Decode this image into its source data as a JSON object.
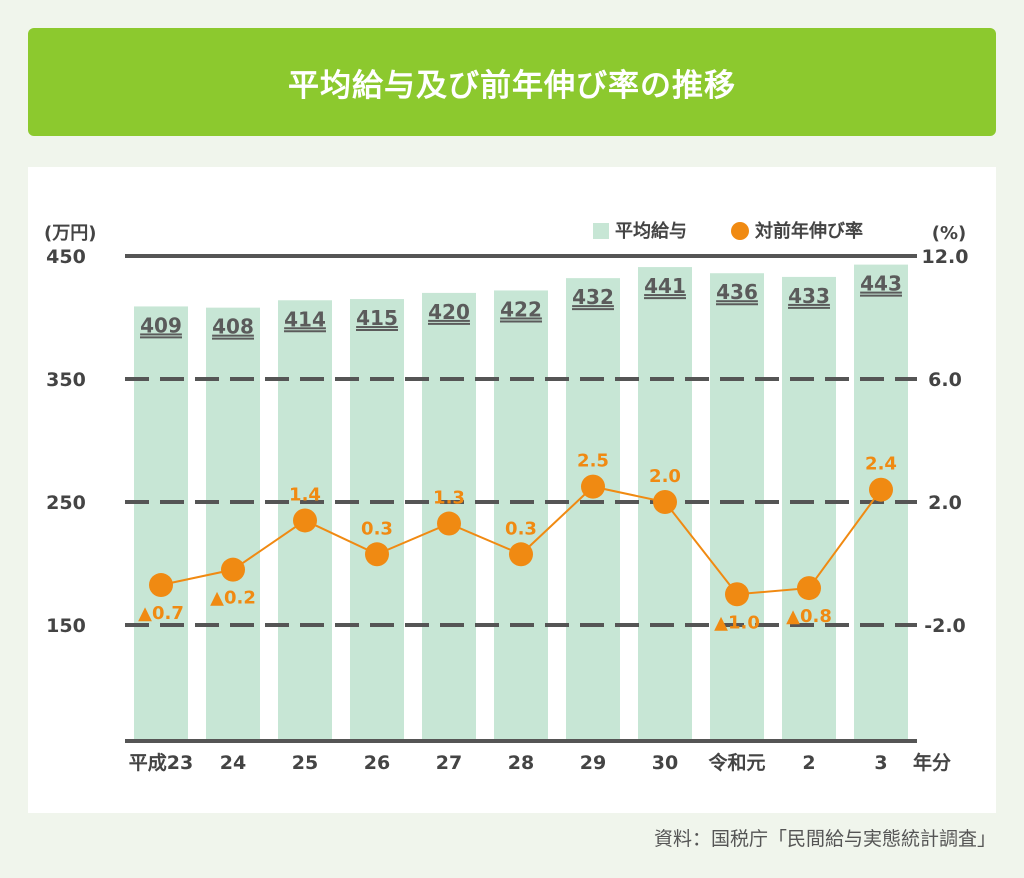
{
  "title": "平均給与及び前年伸び率の推移",
  "source": "資料：国税庁「民間給与実態統計調査」",
  "colors": {
    "title_bg": "#8cc92e",
    "bar": "#c7e6d5",
    "line": "#f08a12",
    "grid": "#555555",
    "text": "#444444"
  },
  "chart_data": {
    "type": "bar+line",
    "categories": [
      "平成23",
      "24",
      "25",
      "26",
      "27",
      "28",
      "29",
      "30",
      "令和元",
      "2",
      "3"
    ],
    "x_unit": "年分",
    "left_axis": {
      "unit": "(万円)",
      "ticks": [
        "450",
        "350",
        "250",
        "150"
      ]
    },
    "right_axis": {
      "unit": "(%)",
      "ticks": [
        "12.0",
        "6.0",
        "2.0",
        "-2.0"
      ]
    },
    "legend": {
      "position": "top-right",
      "items": [
        "平均給与",
        "対前年伸び率"
      ]
    },
    "series": [
      {
        "name": "平均給与",
        "type": "bar",
        "axis": "left",
        "values": [
          409,
          408,
          414,
          415,
          420,
          422,
          432,
          441,
          436,
          433,
          443
        ],
        "labels": [
          "409",
          "408",
          "414",
          "415",
          "420",
          "422",
          "432",
          "441",
          "436",
          "433",
          "443"
        ]
      },
      {
        "name": "対前年伸び率",
        "type": "line",
        "axis": "right",
        "values": [
          -0.7,
          -0.2,
          1.4,
          0.3,
          1.3,
          0.3,
          2.5,
          2.0,
          -1.0,
          -0.8,
          2.4
        ],
        "labels": [
          "▲0.7",
          "▲0.2",
          "1.4",
          "0.3",
          "1.3",
          "0.3",
          "2.5",
          "2.0",
          "▲1.0",
          "▲0.8",
          "2.4"
        ]
      }
    ]
  }
}
